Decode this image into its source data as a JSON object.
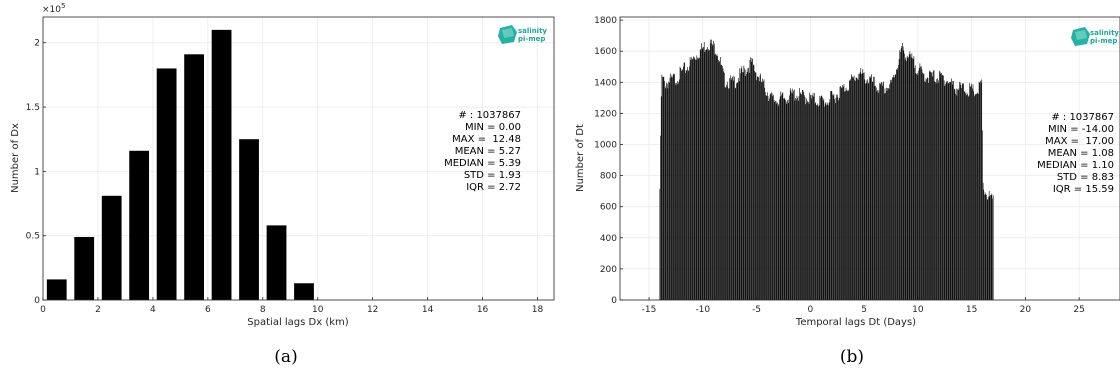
{
  "chart_data": [
    {
      "type": "bar",
      "panel_label": "(a)",
      "xlabel": "Spatial lags Dx (km)",
      "ylabel": "Number of Dx",
      "exponent_label": "×10",
      "exponent_power": "5",
      "xlim": [
        0,
        18.6
      ],
      "ylim": [
        0,
        2.2
      ],
      "xticks": [
        0,
        2,
        4,
        6,
        8,
        10,
        12,
        14,
        16,
        18
      ],
      "yticks": [
        0,
        0.5,
        1,
        1.5,
        2
      ],
      "ytick_labels": [
        "0",
        "0.5",
        "1",
        "1.5",
        "2"
      ],
      "bar_width": 0.72,
      "categories": [
        0.5,
        1.5,
        2.5,
        3.5,
        4.5,
        5.5,
        6.5,
        7.5,
        8.5,
        9.5
      ],
      "values": [
        0.16,
        0.49,
        0.81,
        1.16,
        1.8,
        1.91,
        2.1,
        1.25,
        0.58,
        0.13
      ],
      "stats": [
        "# : 1037867",
        "MIN = 0.00",
        "MAX =  12.48",
        "MEAN = 5.27",
        "MEDIAN = 5.39",
        "STD = 1.93",
        "IQR = 2.72"
      ],
      "grid": true,
      "logo": [
        "salinity",
        "pi-mep"
      ],
      "colors": {
        "bars": "#000000",
        "logo": "#1aa99a"
      }
    },
    {
      "type": "bar",
      "panel_label": "(b)",
      "xlabel": "Temporal lags Dt (Days)",
      "ylabel": "Number of Dt",
      "xlim": [
        -17.7,
        28.8
      ],
      "ylim": [
        0,
        1820
      ],
      "xticks": [
        -15,
        -10,
        -5,
        0,
        5,
        10,
        15,
        20,
        25
      ],
      "xtick_labels": [
        "-15",
        "-10",
        "-5",
        "0",
        "5",
        "10",
        "15",
        "20",
        "25"
      ],
      "yticks": [
        0,
        200,
        400,
        600,
        800,
        1000,
        1200,
        1400,
        1600,
        1800
      ],
      "ytick_labels": [
        "0",
        "200",
        "400",
        "600",
        "800",
        "1000",
        "1200",
        "1400",
        "1600",
        "1800"
      ],
      "bar_width": 0.045,
      "x_start": -14.0,
      "x_step": 0.0625,
      "x_end": 17.0,
      "shape": {
        "x": [
          -14.0,
          -13.85,
          -13.5,
          -12.5,
          -11.5,
          -10.5,
          -9.5,
          -8.7,
          -8.0,
          -7.2,
          -6.5,
          -5.5,
          -4.5,
          -3.5,
          -2.5,
          -1.5,
          -0.5,
          0.5,
          1.5,
          2.5,
          3.5,
          4.5,
          5.5,
          6.5,
          7.5,
          8.5,
          9.5,
          10.5,
          11.5,
          12.5,
          13.5,
          14.5,
          15.5,
          15.95,
          16.05,
          16.5,
          17.0
        ],
        "y": [
          740,
          1450,
          1420,
          1450,
          1520,
          1610,
          1680,
          1640,
          1440,
          1420,
          1470,
          1550,
          1420,
          1310,
          1320,
          1350,
          1330,
          1310,
          1300,
          1350,
          1410,
          1480,
          1440,
          1380,
          1400,
          1640,
          1560,
          1470,
          1460,
          1450,
          1390,
          1380,
          1360,
          1420,
          740,
          700,
          650
        ]
      },
      "stats": [
        "# : 1037867",
        "MIN = -14.00",
        "MAX =  17.00",
        "MEAN = 1.08",
        "MEDIAN = 1.10",
        "STD = 8.83",
        "IQR = 15.59"
      ],
      "grid": true,
      "logo": [
        "salinity",
        "pi-mep"
      ],
      "colors": {
        "bars": "#000000",
        "logo": "#1aa99a"
      }
    }
  ]
}
